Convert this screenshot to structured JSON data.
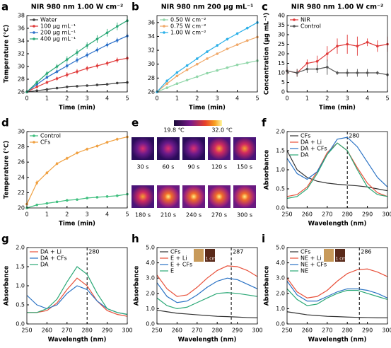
{
  "chart_data": [
    {
      "type": "line",
      "label": "a",
      "title": "NIR 980 nm 1.00 W cm⁻²",
      "x_label": "Time (min)",
      "y_label": "Temperature (℃)",
      "x": [
        0,
        0.5,
        1,
        1.5,
        2,
        2.5,
        3,
        3.5,
        4,
        4.5,
        5
      ],
      "xlim": [
        0,
        5
      ],
      "xticks": [
        0,
        1,
        2,
        3,
        4,
        5
      ],
      "ylim": [
        26,
        38
      ],
      "yticks": [
        26,
        28,
        30,
        32,
        34,
        36,
        38
      ],
      "markers": true,
      "legend": "upper left",
      "series": [
        {
          "name": "Water",
          "color": "#404040",
          "values": [
            26,
            26.2,
            26.4,
            26.6,
            26.8,
            26.9,
            27,
            27.1,
            27.2,
            27.4,
            27.5
          ],
          "errors": [
            0.1,
            0.1,
            0.1,
            0.1,
            0.1,
            0.1,
            0.1,
            0.15,
            0.15,
            0.15,
            0.2
          ]
        },
        {
          "name": "100 μg mL⁻¹",
          "color": "#e03a3a",
          "values": [
            26,
            26.8,
            27.5,
            28.1,
            28.7,
            29.2,
            29.7,
            30.1,
            30.5,
            31,
            31.3
          ],
          "errors": [
            0.1,
            0.2,
            0.3,
            0.3,
            0.4,
            0.4,
            0.4,
            0.4,
            0.4,
            0.4,
            0.4
          ]
        },
        {
          "name": "200 μg mL⁻¹",
          "color": "#2a6fc9",
          "values": [
            26,
            27.2,
            28.3,
            29.2,
            30.1,
            31,
            31.8,
            32.6,
            33.4,
            34.1,
            34.8
          ],
          "errors": [
            0.1,
            0.2,
            0.3,
            0.3,
            0.4,
            0.4,
            0.4,
            0.4,
            0.4,
            0.4,
            0.4
          ]
        },
        {
          "name": "400 μg mL⁻¹",
          "color": "#2aa876",
          "values": [
            26,
            27.5,
            28.9,
            30,
            31.1,
            32.2,
            33.3,
            34.3,
            35.3,
            36.3,
            37.2
          ],
          "errors": [
            0.1,
            0.3,
            0.4,
            0.4,
            0.5,
            0.5,
            0.5,
            0.6,
            0.6,
            0.6,
            0.7
          ]
        }
      ]
    },
    {
      "type": "line",
      "label": "b",
      "title": "NIR 980 nm 200 μg mL⁻¹",
      "x_label": "Time (min)",
      "x": [
        0,
        0.5,
        1,
        1.5,
        2,
        2.5,
        3,
        3.5,
        4,
        4.5,
        5
      ],
      "xlim": [
        0,
        5
      ],
      "xticks": [
        0,
        1,
        2,
        3,
        4,
        5
      ],
      "ylim": [
        26,
        37
      ],
      "yticks": [
        26,
        28,
        30,
        32,
        34,
        36
      ],
      "markers": true,
      "legend": "upper left",
      "series": [
        {
          "name": "0.50 W cm⁻²",
          "color": "#8fd6a8",
          "values": [
            26,
            26.6,
            27.2,
            27.7,
            28.2,
            28.7,
            29.1,
            29.5,
            29.9,
            30.2,
            30.5
          ],
          "errors": [
            0.1,
            0.1,
            0.1,
            0.1,
            0.1,
            0.1,
            0.1,
            0.1,
            0.1,
            0.1,
            0.15
          ]
        },
        {
          "name": "0.75 W cm⁻²",
          "color": "#f0a868",
          "values": [
            26,
            27.2,
            28.3,
            29.2,
            30,
            30.8,
            31.5,
            32.2,
            32.8,
            33.4,
            33.9
          ],
          "errors": [
            0.1,
            0.1,
            0.1,
            0.1,
            0.15,
            0.15,
            0.15,
            0.15,
            0.15,
            0.15,
            0.2
          ]
        },
        {
          "name": "1.00 W cm⁻²",
          "color": "#2bb0e8",
          "values": [
            26,
            27.6,
            28.8,
            29.8,
            30.8,
            31.8,
            32.7,
            33.6,
            34.4,
            35.2,
            36
          ],
          "errors": [
            0.1,
            0.2,
            0.2,
            0.2,
            0.2,
            0.2,
            0.2,
            0.2,
            0.2,
            0.2,
            0.2
          ]
        }
      ]
    },
    {
      "type": "line",
      "label": "c",
      "title": "NIR 980 nm 1.00 W cm⁻²",
      "x_label": "Time (min)",
      "y_label": "Concentration (μg mL⁻¹)",
      "x": [
        0,
        0.5,
        1,
        1.5,
        2,
        2.5,
        3,
        3.5,
        4,
        4.5,
        5
      ],
      "xlim": [
        0,
        5
      ],
      "xticks": [
        0,
        1,
        2,
        3,
        4,
        5
      ],
      "ylim": [
        0,
        40
      ],
      "yticks": [
        0,
        5,
        10,
        15,
        20,
        25,
        30,
        35,
        40
      ],
      "markers": true,
      "legend": "upper left",
      "series": [
        {
          "name": "NIR",
          "color": "#e03a3a",
          "values": [
            11,
            10,
            15,
            16,
            20,
            24,
            25,
            24,
            26,
            24,
            25
          ],
          "errors": [
            2,
            2,
            2,
            3,
            4,
            4,
            5,
            5,
            2,
            3,
            4
          ]
        },
        {
          "name": "Control",
          "color": "#555555",
          "values": [
            11,
            10,
            12,
            12,
            13,
            10,
            10,
            10,
            10,
            10,
            9
          ],
          "errors": [
            1,
            2,
            2,
            2,
            4,
            1,
            2,
            2,
            2,
            1,
            1
          ]
        }
      ]
    },
    {
      "type": "line",
      "label": "d",
      "x_label": "Time (min)",
      "y_label": "Temperature (℃)",
      "x": [
        0,
        0.5,
        1,
        1.5,
        2,
        2.5,
        3,
        3.5,
        4,
        4.5,
        5
      ],
      "xlim": [
        0,
        5
      ],
      "xticks": [
        0,
        1,
        2,
        3,
        4,
        5
      ],
      "ylim": [
        20,
        30
      ],
      "yticks": [
        20,
        22,
        24,
        26,
        28,
        30
      ],
      "markers": true,
      "legend": "upper left",
      "series": [
        {
          "name": "Control",
          "color": "#3fbf7f",
          "values": [
            20,
            20.4,
            20.6,
            20.8,
            21,
            21.1,
            21.3,
            21.4,
            21.5,
            21.6,
            21.8
          ],
          "errors": [
            0.1,
            0.1,
            0.1,
            0.1,
            0.1,
            0.1,
            0.1,
            0.1,
            0.1,
            0.1,
            0.1
          ]
        },
        {
          "name": "CFs",
          "color": "#f0a040",
          "values": [
            20.5,
            23.3,
            24.6,
            25.8,
            26.5,
            27.2,
            27.7,
            28.1,
            28.6,
            29,
            29.3
          ],
          "errors": [
            0.1,
            0.3,
            0.2,
            0.2,
            0.2,
            0.2,
            0.2,
            0.2,
            0.2,
            0.2,
            0.2
          ]
        }
      ]
    },
    {
      "type": "line",
      "label": "f",
      "x_label": "Wavelength (nm)",
      "y_label": "Absorbance",
      "vline": 280,
      "x": [
        250,
        255,
        260,
        265,
        270,
        275,
        280,
        285,
        290,
        295,
        300
      ],
      "xlim": [
        250,
        300
      ],
      "xticks": [
        250,
        260,
        270,
        280,
        290,
        300
      ],
      "ylim": [
        0,
        2
      ],
      "yticks": [
        {
          "value": 0,
          "label": "0.0"
        },
        0.5,
        {
          "value": 1,
          "label": "1.0"
        },
        1.5,
        {
          "value": 2,
          "label": "2.0"
        }
      ],
      "markers": false,
      "legend": "upper left",
      "series": [
        {
          "name": "CFs",
          "color": "#333333",
          "values": [
            1.5,
            1.0,
            0.8,
            0.7,
            0.65,
            0.62,
            0.6,
            0.58,
            0.55,
            0.5,
            0.45
          ]
        },
        {
          "name": "DA + Li",
          "color": "#e8503a",
          "values": [
            0.3,
            0.35,
            0.55,
            0.95,
            1.45,
            1.7,
            1.5,
            1.05,
            0.65,
            0.4,
            0.3
          ]
        },
        {
          "name": "DA + CFs",
          "color": "#2a72c4",
          "values": [
            1.3,
            0.9,
            0.75,
            0.95,
            1.4,
            1.8,
            1.85,
            1.6,
            1.2,
            0.8,
            0.55
          ]
        },
        {
          "name": "DA",
          "color": "#2aa876",
          "values": [
            0.25,
            0.3,
            0.5,
            0.9,
            1.4,
            1.7,
            1.5,
            1.0,
            0.55,
            0.35,
            0.3
          ]
        }
      ]
    },
    {
      "type": "line",
      "label": "g",
      "x_label": "Wavelength (nm)",
      "y_label": "Absorbance",
      "vline": 280,
      "x": [
        250,
        255,
        260,
        265,
        270,
        275,
        280,
        285,
        290,
        295,
        300
      ],
      "xlim": [
        250,
        300
      ],
      "xticks": [
        250,
        260,
        270,
        280,
        290,
        300
      ],
      "ylim": [
        0,
        2
      ],
      "yticks": [
        {
          "value": 0,
          "label": "0.0"
        },
        0.5,
        {
          "value": 1,
          "label": "1.0"
        },
        1.5,
        {
          "value": 2,
          "label": "2.0"
        }
      ],
      "markers": false,
      "legend": "upper left",
      "series": [
        {
          "name": "DA + Li",
          "color": "#e8503a",
          "values": [
            0.3,
            0.3,
            0.35,
            0.55,
            0.9,
            1.2,
            1.0,
            0.6,
            0.35,
            0.25,
            0.2
          ]
        },
        {
          "name": "DA + CFs",
          "color": "#2a72c4",
          "values": [
            0.75,
            0.5,
            0.4,
            0.5,
            0.8,
            1.0,
            0.9,
            0.6,
            0.4,
            0.3,
            0.25
          ]
        },
        {
          "name": "DA",
          "color": "#2aa876",
          "values": [
            0.3,
            0.3,
            0.4,
            0.65,
            1.1,
            1.5,
            1.3,
            0.8,
            0.4,
            0.3,
            0.25
          ]
        }
      ]
    },
    {
      "type": "line",
      "label": "h",
      "x_label": "Wavelength (nm)",
      "y_label": "Absorbance",
      "vline": 287,
      "inset_label": "1 cm",
      "x": [
        250,
        255,
        260,
        265,
        270,
        275,
        280,
        285,
        290,
        295,
        300
      ],
      "xlim": [
        250,
        300
      ],
      "xticks": [
        250,
        260,
        270,
        280,
        290,
        300
      ],
      "ylim": [
        0,
        5
      ],
      "yticks": [
        {
          "value": 0,
          "label": "0.0"
        },
        {
          "value": 1,
          "label": "1.0"
        },
        {
          "value": 2,
          "label": "2.0"
        },
        {
          "value": 3,
          "label": "3.0"
        },
        {
          "value": 4,
          "label": "4.0"
        },
        {
          "value": 5,
          "label": "5.0"
        }
      ],
      "markers": false,
      "legend": "upper left",
      "series": [
        {
          "name": "CFs",
          "color": "#333333",
          "values": [
            0.9,
            0.8,
            0.7,
            0.65,
            0.6,
            0.55,
            0.5,
            0.48,
            0.45,
            0.42,
            0.4
          ]
        },
        {
          "name": "E + Li",
          "color": "#e8503a",
          "values": [
            3.2,
            2.3,
            1.8,
            1.9,
            2.4,
            3.0,
            3.5,
            3.8,
            3.75,
            3.5,
            3.1
          ]
        },
        {
          "name": "E + CFs",
          "color": "#2a72c4",
          "values": [
            2.7,
            1.8,
            1.4,
            1.5,
            1.9,
            2.4,
            2.8,
            3.0,
            2.9,
            2.6,
            2.3
          ]
        },
        {
          "name": "E",
          "color": "#2aa876",
          "values": [
            1.7,
            1.2,
            1.0,
            1.1,
            1.4,
            1.7,
            2.0,
            2.05,
            2.0,
            1.9,
            1.8
          ]
        }
      ]
    },
    {
      "type": "line",
      "label": "i",
      "x_label": "Wavelength (nm)",
      "y_label": "Absorbance",
      "vline": 286,
      "inset_label": "1 cm",
      "x": [
        250,
        255,
        260,
        265,
        270,
        275,
        280,
        285,
        290,
        295,
        300
      ],
      "xlim": [
        250,
        300
      ],
      "xticks": [
        250,
        260,
        270,
        280,
        290,
        300
      ],
      "ylim": [
        0,
        5
      ],
      "yticks": [
        {
          "value": 0,
          "label": "0.0"
        },
        {
          "value": 1,
          "label": "1.0"
        },
        {
          "value": 2,
          "label": "2.0"
        },
        {
          "value": 3,
          "label": "3.0"
        },
        {
          "value": 4,
          "label": "4.0"
        },
        {
          "value": 5,
          "label": "5.0"
        }
      ],
      "markers": false,
      "legend": "upper left",
      "series": [
        {
          "name": "CFs",
          "color": "#333333",
          "values": [
            0.8,
            0.7,
            0.6,
            0.55,
            0.5,
            0.48,
            0.45,
            0.43,
            0.42,
            0.4,
            0.4
          ]
        },
        {
          "name": "NE + Li",
          "color": "#e8503a",
          "values": [
            3.0,
            2.1,
            1.7,
            1.8,
            2.2,
            2.8,
            3.3,
            3.55,
            3.6,
            3.4,
            3.1
          ]
        },
        {
          "name": "NE + CFs",
          "color": "#2a72c4",
          "values": [
            2.8,
            1.9,
            1.5,
            1.5,
            1.8,
            2.1,
            2.3,
            2.3,
            2.2,
            2.0,
            1.7
          ]
        },
        {
          "name": "NE",
          "color": "#2aa876",
          "values": [
            2.3,
            1.6,
            1.2,
            1.3,
            1.7,
            2.0,
            2.2,
            2.2,
            2.0,
            1.8,
            1.6
          ]
        }
      ]
    }
  ],
  "thermal": {
    "label": "e",
    "colorbar_min": "19.8 ℃",
    "colorbar_max": "32.0 ℃",
    "frames": [
      "30 s",
      "60 s",
      "90 s",
      "120 s",
      "150 s",
      "180 s",
      "210 s",
      "240 s",
      "270 s",
      "300 s"
    ]
  }
}
